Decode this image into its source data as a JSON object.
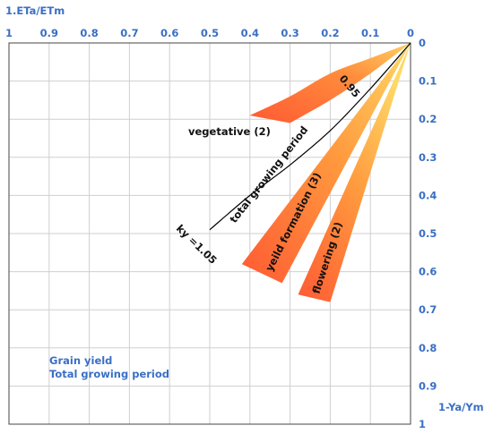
{
  "chart_data": {
    "type": "area",
    "title": "",
    "top_axis_label": "1.ETa/ETm",
    "right_axis_label": "1-Ya/Ym",
    "top_ticks": [
      "1",
      "0.9",
      "0.8",
      "0.7",
      "0.6",
      "0.5",
      "0.4",
      "0.3",
      "0.2",
      "0.1",
      "0"
    ],
    "right_ticks": [
      "0",
      "0.1",
      "0.2",
      "0.3",
      "0.4",
      "0.5",
      "0.6",
      "0.7",
      "0.8",
      "0.9",
      "1"
    ],
    "xlim": [
      1,
      0
    ],
    "ylim": [
      0,
      1
    ],
    "grid": true,
    "caption_lines": [
      "Grain yield",
      "Total growing period"
    ],
    "series": [
      {
        "name": "vegetative (2)",
        "kind": "band",
        "color": "#ff8a3c",
        "upper": [
          [
            0,
            0
          ],
          [
            0.1,
            0.04
          ],
          [
            0.2,
            0.08
          ],
          [
            0.3,
            0.14
          ],
          [
            0.4,
            0.19
          ]
        ],
        "lower": [
          [
            0,
            0
          ],
          [
            0.1,
            0.08
          ],
          [
            0.2,
            0.15
          ],
          [
            0.3,
            0.21
          ]
        ]
      },
      {
        "name": "yeild formation (3)",
        "kind": "band",
        "color": "#ff6a3a",
        "upper": [
          [
            0,
            0
          ],
          [
            0.42,
            0.58
          ]
        ],
        "lower": [
          [
            0,
            0
          ],
          [
            0.32,
            0.63
          ]
        ]
      },
      {
        "name": "flowering (2)",
        "kind": "band",
        "color": "#ff6a3a",
        "upper": [
          [
            0,
            0
          ],
          [
            0.28,
            0.66
          ]
        ],
        "lower": [
          [
            0,
            0
          ],
          [
            0.2,
            0.68
          ]
        ]
      },
      {
        "name": "total growing period",
        "kind": "line",
        "color": "#000000",
        "points": [
          [
            0,
            0
          ],
          [
            0.1,
            0.12
          ],
          [
            0.2,
            0.23
          ],
          [
            0.3,
            0.32
          ],
          [
            0.4,
            0.4
          ],
          [
            0.5,
            0.49
          ]
        ]
      }
    ],
    "annotations": [
      "0.95",
      "ky =1.05"
    ]
  }
}
